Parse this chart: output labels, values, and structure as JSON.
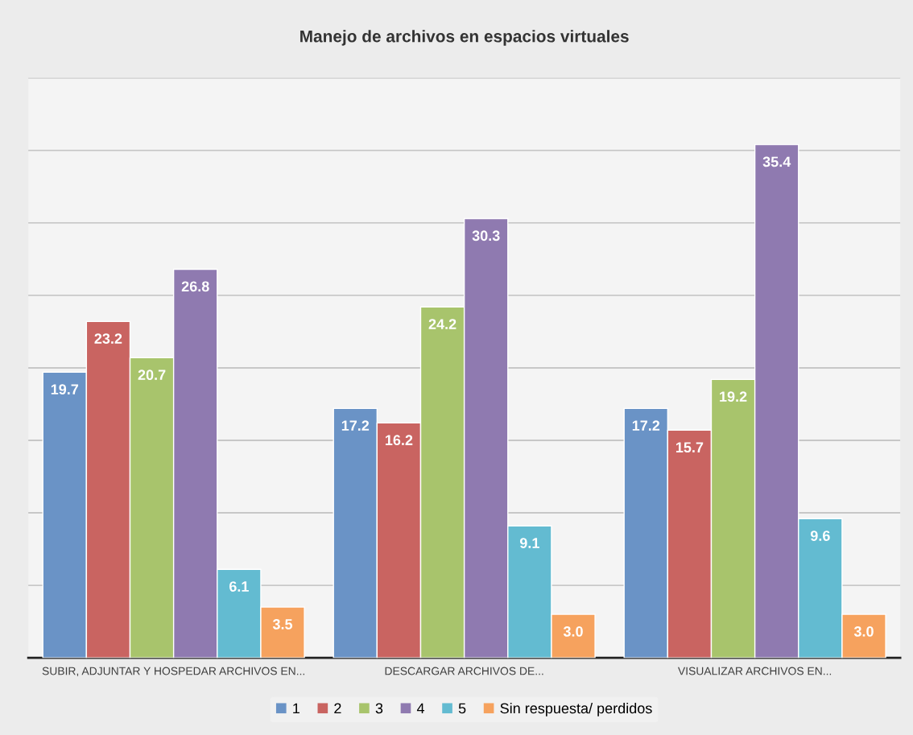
{
  "chart_data": {
    "type": "bar",
    "title": "Manejo de archivos en espacios virtuales",
    "categories": [
      "SUBIR, ADJUNTAR Y HOSPEDAR ARCHIVOS EN...",
      "DESCARGAR ARCHIVOS DE...",
      "VISUALIZAR ARCHIVOS EN..."
    ],
    "series": [
      {
        "name": "1",
        "color": "#6a93c6",
        "values": [
          19.7,
          17.2,
          17.2
        ],
        "value_labels": [
          "19.7",
          "17.2",
          "17.2"
        ]
      },
      {
        "name": "2",
        "color": "#c96461",
        "values": [
          23.2,
          16.2,
          15.7
        ],
        "value_labels": [
          "23.2",
          "16.2",
          "15.7"
        ]
      },
      {
        "name": "3",
        "color": "#a8c46c",
        "values": [
          20.7,
          24.2,
          19.2
        ],
        "value_labels": [
          "20.7",
          "24.2",
          "19.2"
        ]
      },
      {
        "name": "4",
        "color": "#8f7ab0",
        "values": [
          26.8,
          30.3,
          35.4
        ],
        "value_labels": [
          "26.8",
          "30.3",
          "35.4"
        ]
      },
      {
        "name": "5",
        "color": "#63bbd1",
        "values": [
          6.1,
          9.1,
          9.6
        ],
        "value_labels": [
          "6.1",
          "9.1",
          "9.6"
        ]
      },
      {
        "name": "Sin respuesta/ perdidos",
        "color": "#f6a25e",
        "values": [
          3.5,
          3.0,
          3.0
        ],
        "value_labels": [
          "3.5",
          "3.0",
          "3.0"
        ]
      }
    ],
    "ylim": [
      0,
      40
    ],
    "yticks": [
      {
        "value": 0,
        "label": null
      },
      {
        "value": 5,
        "label": null
      },
      {
        "value": 10,
        "label": null
      },
      {
        "value": 15,
        "label": null
      },
      {
        "value": 20,
        "label": null
      },
      {
        "value": 25,
        "label": null
      },
      {
        "value": 30,
        "label": null
      },
      {
        "value": 35,
        "label": null
      },
      {
        "value": 40,
        "label": null
      }
    ],
    "grid": "y",
    "legend": "bottom",
    "tick_labels": "x"
  }
}
